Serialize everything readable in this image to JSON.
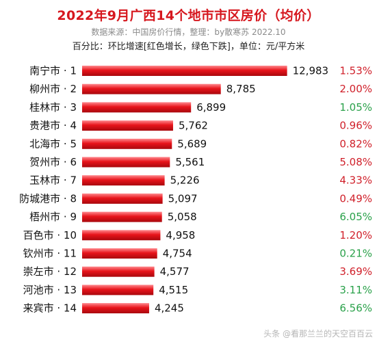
{
  "title": "2022年9月广西14个地市市区房价（均价）",
  "source": "数据来源：中国房价行情，整理：by散寒苏 2022.10",
  "note": "百分比：环比增速[红色增长，绿色下跌]，单位：元/平方米",
  "watermark": "头条 @看那兰兰的天空百百云",
  "colors": {
    "bar": "#e8141b",
    "increase": "#d0202a",
    "decrease": "#2aa14a"
  },
  "chart_data": {
    "type": "bar",
    "orientation": "horizontal",
    "categories": [
      "南宁市 · 1",
      "柳州市 · 2",
      "桂林市 · 3",
      "贵港市 · 4",
      "北海市 · 5",
      "贺州市 · 6",
      "玉林市 · 7",
      "防城港市 · 8",
      "梧州市 · 9",
      "百色市 · 10",
      "钦州市 · 11",
      "崇左市 · 12",
      "河池市 · 13",
      "来宾市 · 14"
    ],
    "values": [
      12983,
      8785,
      6899,
      5762,
      5689,
      5561,
      5226,
      5097,
      5058,
      4958,
      4754,
      4577,
      4515,
      4245
    ],
    "value_labels": [
      "12,983",
      "8,785",
      "6,899",
      "5,762",
      "5,689",
      "5,561",
      "5,226",
      "5,097",
      "5,058",
      "4,958",
      "4,754",
      "4,577",
      "4,515",
      "4,245"
    ],
    "mom_change": [
      "1.53%",
      "2.00%",
      "1.05%",
      "0.96%",
      "0.82%",
      "5.08%",
      "4.33%",
      "0.49%",
      "6.05%",
      "1.20%",
      "0.21%",
      "3.69%",
      "3.11%",
      "6.56%"
    ],
    "mom_direction": [
      "up",
      "up",
      "down",
      "up",
      "up",
      "up",
      "up",
      "up",
      "down",
      "up",
      "down",
      "up",
      "down",
      "down"
    ],
    "xlim": [
      0,
      13000
    ]
  }
}
